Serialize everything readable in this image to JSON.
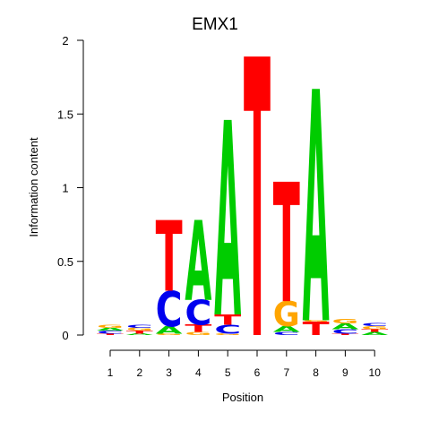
{
  "chart_data": {
    "type": "sequence-logo",
    "title": "EMX1",
    "xlabel": "Position",
    "ylabel": "Information content",
    "ylim": [
      0,
      2
    ],
    "yticks": [
      "0",
      "0.5",
      "1",
      "1.5",
      "2"
    ],
    "xticks": [
      "1",
      "2",
      "3",
      "4",
      "5",
      "6",
      "7",
      "8",
      "9",
      "10"
    ],
    "colors": {
      "A": "#00cc00",
      "C": "#0000ee",
      "G": "#ffa500",
      "T": "#ff0000"
    },
    "positions": [
      {
        "pos": "1",
        "letters": [
          {
            "base": "T",
            "height": 0.01
          },
          {
            "base": "C",
            "height": 0.02
          },
          {
            "base": "A",
            "height": 0.02
          },
          {
            "base": "G",
            "height": 0.02
          }
        ]
      },
      {
        "pos": "2",
        "letters": [
          {
            "base": "A",
            "height": 0.01
          },
          {
            "base": "T",
            "height": 0.02
          },
          {
            "base": "G",
            "height": 0.02
          },
          {
            "base": "C",
            "height": 0.02
          }
        ]
      },
      {
        "pos": "3",
        "letters": [
          {
            "base": "G",
            "height": 0.01
          },
          {
            "base": "A",
            "height": 0.05
          },
          {
            "base": "C",
            "height": 0.24
          },
          {
            "base": "T",
            "height": 0.48
          }
        ]
      },
      {
        "pos": "4",
        "letters": [
          {
            "base": "G",
            "height": 0.02
          },
          {
            "base": "T",
            "height": 0.05
          },
          {
            "base": "C",
            "height": 0.17
          },
          {
            "base": "A",
            "height": 0.54
          }
        ]
      },
      {
        "pos": "5",
        "letters": [
          {
            "base": "G",
            "height": 0.01
          },
          {
            "base": "C",
            "height": 0.06
          },
          {
            "base": "T",
            "height": 0.07
          },
          {
            "base": "A",
            "height": 1.32
          }
        ]
      },
      {
        "pos": "6",
        "letters": [
          {
            "base": "T",
            "height": 1.89
          }
        ]
      },
      {
        "pos": "7",
        "letters": [
          {
            "base": "C",
            "height": 0.02
          },
          {
            "base": "A",
            "height": 0.04
          },
          {
            "base": "G",
            "height": 0.17
          },
          {
            "base": "T",
            "height": 0.81
          }
        ]
      },
      {
        "pos": "8",
        "letters": [
          {
            "base": "T",
            "height": 0.09
          },
          {
            "base": "G",
            "height": 0.01
          },
          {
            "base": "A",
            "height": 1.57
          }
        ]
      },
      {
        "pos": "9",
        "letters": [
          {
            "base": "T",
            "height": 0.01
          },
          {
            "base": "C",
            "height": 0.03
          },
          {
            "base": "A",
            "height": 0.04
          },
          {
            "base": "G",
            "height": 0.03
          }
        ]
      },
      {
        "pos": "10",
        "letters": [
          {
            "base": "A",
            "height": 0.02
          },
          {
            "base": "T",
            "height": 0.02
          },
          {
            "base": "G",
            "height": 0.02
          },
          {
            "base": "C",
            "height": 0.02
          }
        ]
      }
    ]
  }
}
